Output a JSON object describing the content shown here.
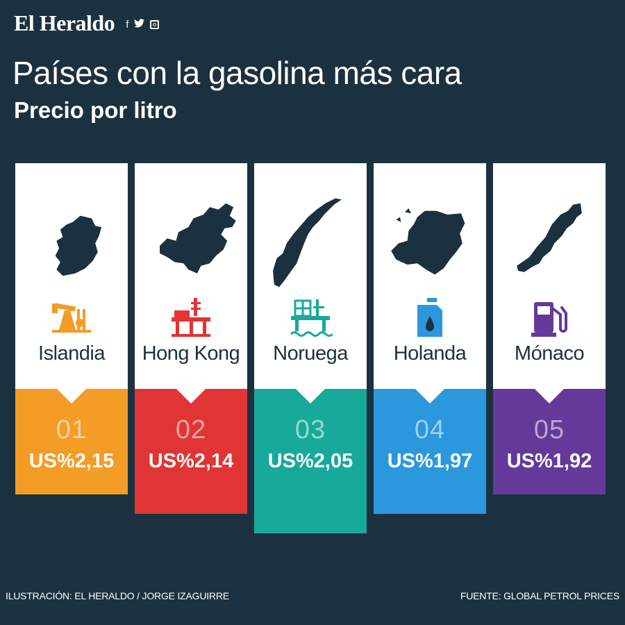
{
  "header": {
    "brand": "El Heraldo",
    "social_icons": [
      "facebook-icon",
      "twitter-icon",
      "instagram-icon"
    ]
  },
  "title": "Países con la gasolina más cara",
  "subtitle": "Precio por litro",
  "chart_data": {
    "type": "table",
    "title": "Países con la gasolina más cara",
    "subtitle": "Precio por litro",
    "categories": [
      "Islandia",
      "Hong Kong",
      "Noruega",
      "Holanda",
      "Mónaco"
    ],
    "ranks": [
      "01",
      "02",
      "03",
      "04",
      "05"
    ],
    "price_labels": [
      "US%2,15",
      "US%2,14",
      "US%2,05",
      "US%1,97",
      "US%1,92"
    ],
    "values": [
      2.15,
      2.14,
      2.05,
      1.97,
      1.92
    ],
    "colors": [
      "#f39c26",
      "#e03534",
      "#17a99a",
      "#2b97dc",
      "#65399a"
    ],
    "icons": [
      "oil-pumpjack-icon",
      "oil-platform-icon",
      "offshore-rig-icon",
      "fuel-can-icon",
      "gas-pump-icon"
    ],
    "maps": [
      "ireland-map",
      "china-map",
      "norway-map",
      "netherlands-map",
      "monaco-map"
    ]
  },
  "footer": {
    "credit": "ILUSTRACIÓN: EL HERALDO / JORGE IZAGUIRRE",
    "source": "FUENTE: GLOBAL PETROL PRICES"
  }
}
